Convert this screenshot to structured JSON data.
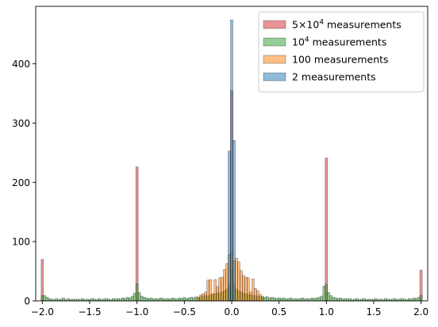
{
  "chart_data": {
    "type": "bar",
    "title": "",
    "xlabel": "",
    "ylabel": "",
    "xlim": [
      -2.07,
      2.07
    ],
    "ylim": [
      0,
      497
    ],
    "bin_width": 0.025,
    "xticks": [
      -2.0,
      -1.5,
      -1.0,
      -0.5,
      0.0,
      0.5,
      1.0,
      1.5,
      2.0
    ],
    "xtick_labels": [
      "−2.0",
      "−1.5",
      "−1.0",
      "−0.5",
      "0.0",
      "0.5",
      "1.0",
      "1.5",
      "2.0"
    ],
    "yticks": [
      0,
      100,
      200,
      300,
      400
    ],
    "ytick_labels": [
      "0",
      "100",
      "200",
      "300",
      "400"
    ],
    "grid": false,
    "legend_position": "top-right",
    "series": [
      {
        "legend_label": "5×10⁴ measurements",
        "legend_base": "5×10",
        "legend_sup": "4",
        "legend_rest": " measurements",
        "color": "#d62728",
        "bars": [
          {
            "x": -2.0,
            "y": 70
          },
          {
            "x": -1.0,
            "y": 226
          },
          {
            "x": 0.0,
            "y": 355
          },
          {
            "x": 1.0,
            "y": 241
          },
          {
            "x": 2.0,
            "y": 52
          }
        ]
      },
      {
        "legend_label": "10⁴ measurements",
        "legend_base": "10",
        "legend_sup": "4",
        "legend_rest": " measurements",
        "color": "#2ca02c",
        "bars": [
          {
            "x": -2.0,
            "y": 9
          },
          {
            "x": -1.975,
            "y": 9
          },
          {
            "x": -1.95,
            "y": 6
          },
          {
            "x": -1.925,
            "y": 4
          },
          {
            "x": -1.9,
            "y": 3
          },
          {
            "x": -1.875,
            "y": 2
          },
          {
            "x": -1.85,
            "y": 4
          },
          {
            "x": -1.825,
            "y": 2
          },
          {
            "x": -1.8,
            "y": 3
          },
          {
            "x": -1.775,
            "y": 5
          },
          {
            "x": -1.75,
            "y": 2
          },
          {
            "x": -1.725,
            "y": 4
          },
          {
            "x": -1.7,
            "y": 2
          },
          {
            "x": -1.675,
            "y": 3
          },
          {
            "x": -1.65,
            "y": 2
          },
          {
            "x": -1.625,
            "y": 3
          },
          {
            "x": -1.6,
            "y": 2
          },
          {
            "x": -1.575,
            "y": 4
          },
          {
            "x": -1.55,
            "y": 2
          },
          {
            "x": -1.525,
            "y": 3
          },
          {
            "x": -1.5,
            "y": 2
          },
          {
            "x": -1.475,
            "y": 4
          },
          {
            "x": -1.45,
            "y": 3
          },
          {
            "x": -1.425,
            "y": 2
          },
          {
            "x": -1.4,
            "y": 4
          },
          {
            "x": -1.375,
            "y": 2
          },
          {
            "x": -1.35,
            "y": 3
          },
          {
            "x": -1.325,
            "y": 4
          },
          {
            "x": -1.3,
            "y": 3
          },
          {
            "x": -1.275,
            "y": 2
          },
          {
            "x": -1.25,
            "y": 4
          },
          {
            "x": -1.225,
            "y": 3
          },
          {
            "x": -1.2,
            "y": 4
          },
          {
            "x": -1.175,
            "y": 3
          },
          {
            "x": -1.15,
            "y": 5
          },
          {
            "x": -1.125,
            "y": 4
          },
          {
            "x": -1.1,
            "y": 6
          },
          {
            "x": -1.075,
            "y": 5
          },
          {
            "x": -1.05,
            "y": 8
          },
          {
            "x": -1.025,
            "y": 13
          },
          {
            "x": -1.0,
            "y": 29
          },
          {
            "x": -0.975,
            "y": 14
          },
          {
            "x": -0.95,
            "y": 8
          },
          {
            "x": -0.925,
            "y": 6
          },
          {
            "x": -0.9,
            "y": 5
          },
          {
            "x": -0.875,
            "y": 4
          },
          {
            "x": -0.85,
            "y": 5
          },
          {
            "x": -0.825,
            "y": 3
          },
          {
            "x": -0.8,
            "y": 4
          },
          {
            "x": -0.775,
            "y": 3
          },
          {
            "x": -0.75,
            "y": 5
          },
          {
            "x": -0.725,
            "y": 4
          },
          {
            "x": -0.7,
            "y": 3
          },
          {
            "x": -0.675,
            "y": 4
          },
          {
            "x": -0.65,
            "y": 3
          },
          {
            "x": -0.625,
            "y": 5
          },
          {
            "x": -0.6,
            "y": 4
          },
          {
            "x": -0.575,
            "y": 3
          },
          {
            "x": -0.55,
            "y": 5
          },
          {
            "x": -0.525,
            "y": 4
          },
          {
            "x": -0.5,
            "y": 6
          },
          {
            "x": -0.475,
            "y": 4
          },
          {
            "x": -0.45,
            "y": 5
          },
          {
            "x": -0.425,
            "y": 6
          },
          {
            "x": -0.4,
            "y": 5
          },
          {
            "x": -0.375,
            "y": 7
          },
          {
            "x": -0.35,
            "y": 6
          },
          {
            "x": -0.325,
            "y": 8
          },
          {
            "x": -0.3,
            "y": 7
          },
          {
            "x": -0.275,
            "y": 9
          },
          {
            "x": -0.25,
            "y": 8
          },
          {
            "x": -0.225,
            "y": 10
          },
          {
            "x": -0.2,
            "y": 11
          },
          {
            "x": -0.175,
            "y": 12
          },
          {
            "x": -0.15,
            "y": 14
          },
          {
            "x": -0.125,
            "y": 13
          },
          {
            "x": -0.1,
            "y": 15
          },
          {
            "x": -0.075,
            "y": 17
          },
          {
            "x": -0.05,
            "y": 20
          },
          {
            "x": -0.025,
            "y": 28
          },
          {
            "x": 0.0,
            "y": 52
          },
          {
            "x": 0.025,
            "y": 28
          },
          {
            "x": 0.05,
            "y": 20
          },
          {
            "x": 0.075,
            "y": 17
          },
          {
            "x": 0.1,
            "y": 15
          },
          {
            "x": 0.125,
            "y": 13
          },
          {
            "x": 0.15,
            "y": 12
          },
          {
            "x": 0.175,
            "y": 11
          },
          {
            "x": 0.2,
            "y": 10
          },
          {
            "x": 0.225,
            "y": 9
          },
          {
            "x": 0.25,
            "y": 9
          },
          {
            "x": 0.275,
            "y": 8
          },
          {
            "x": 0.3,
            "y": 7
          },
          {
            "x": 0.325,
            "y": 8
          },
          {
            "x": 0.35,
            "y": 6
          },
          {
            "x": 0.375,
            "y": 7
          },
          {
            "x": 0.4,
            "y": 5
          },
          {
            "x": 0.425,
            "y": 6
          },
          {
            "x": 0.45,
            "y": 5
          },
          {
            "x": 0.475,
            "y": 4
          },
          {
            "x": 0.5,
            "y": 5
          },
          {
            "x": 0.525,
            "y": 4
          },
          {
            "x": 0.55,
            "y": 5
          },
          {
            "x": 0.575,
            "y": 3
          },
          {
            "x": 0.6,
            "y": 4
          },
          {
            "x": 0.625,
            "y": 5
          },
          {
            "x": 0.65,
            "y": 3
          },
          {
            "x": 0.675,
            "y": 4
          },
          {
            "x": 0.7,
            "y": 3
          },
          {
            "x": 0.725,
            "y": 4
          },
          {
            "x": 0.75,
            "y": 5
          },
          {
            "x": 0.775,
            "y": 3
          },
          {
            "x": 0.8,
            "y": 4
          },
          {
            "x": 0.825,
            "y": 3
          },
          {
            "x": 0.85,
            "y": 5
          },
          {
            "x": 0.875,
            "y": 4
          },
          {
            "x": 0.9,
            "y": 5
          },
          {
            "x": 0.925,
            "y": 6
          },
          {
            "x": 0.95,
            "y": 8
          },
          {
            "x": 0.975,
            "y": 25
          },
          {
            "x": 1.0,
            "y": 28
          },
          {
            "x": 1.025,
            "y": 14
          },
          {
            "x": 1.05,
            "y": 9
          },
          {
            "x": 1.075,
            "y": 6
          },
          {
            "x": 1.1,
            "y": 5
          },
          {
            "x": 1.125,
            "y": 4
          },
          {
            "x": 1.15,
            "y": 5
          },
          {
            "x": 1.175,
            "y": 3
          },
          {
            "x": 1.2,
            "y": 4
          },
          {
            "x": 1.225,
            "y": 3
          },
          {
            "x": 1.25,
            "y": 4
          },
          {
            "x": 1.275,
            "y": 2
          },
          {
            "x": 1.3,
            "y": 3
          },
          {
            "x": 1.325,
            "y": 4
          },
          {
            "x": 1.35,
            "y": 2
          },
          {
            "x": 1.375,
            "y": 3
          },
          {
            "x": 1.4,
            "y": 4
          },
          {
            "x": 1.425,
            "y": 2
          },
          {
            "x": 1.45,
            "y": 3
          },
          {
            "x": 1.475,
            "y": 2
          },
          {
            "x": 1.5,
            "y": 3
          },
          {
            "x": 1.525,
            "y": 4
          },
          {
            "x": 1.55,
            "y": 2
          },
          {
            "x": 1.575,
            "y": 3
          },
          {
            "x": 1.6,
            "y": 2
          },
          {
            "x": 1.625,
            "y": 4
          },
          {
            "x": 1.65,
            "y": 3
          },
          {
            "x": 1.675,
            "y": 2
          },
          {
            "x": 1.7,
            "y": 3
          },
          {
            "x": 1.725,
            "y": 4
          },
          {
            "x": 1.75,
            "y": 2
          },
          {
            "x": 1.775,
            "y": 3
          },
          {
            "x": 1.8,
            "y": 4
          },
          {
            "x": 1.825,
            "y": 3
          },
          {
            "x": 1.85,
            "y": 2
          },
          {
            "x": 1.875,
            "y": 4
          },
          {
            "x": 1.9,
            "y": 3
          },
          {
            "x": 1.925,
            "y": 5
          },
          {
            "x": 1.95,
            "y": 4
          },
          {
            "x": 1.975,
            "y": 6
          },
          {
            "x": 2.0,
            "y": 9
          }
        ]
      },
      {
        "legend_label": "100 measurements",
        "legend_base": "100 measurements",
        "legend_sup": "",
        "legend_rest": "",
        "color": "#ff7f0e",
        "bars": [
          {
            "x": -0.35,
            "y": 5
          },
          {
            "x": -0.325,
            "y": 10
          },
          {
            "x": -0.3,
            "y": 12
          },
          {
            "x": -0.275,
            "y": 15
          },
          {
            "x": -0.25,
            "y": 35
          },
          {
            "x": -0.225,
            "y": 36
          },
          {
            "x": -0.2,
            "y": 12
          },
          {
            "x": -0.175,
            "y": 36
          },
          {
            "x": -0.15,
            "y": 24
          },
          {
            "x": -0.125,
            "y": 39
          },
          {
            "x": -0.1,
            "y": 40
          },
          {
            "x": -0.075,
            "y": 53
          },
          {
            "x": -0.05,
            "y": 63
          },
          {
            "x": -0.025,
            "y": 78
          },
          {
            "x": 0.0,
            "y": 79
          },
          {
            "x": 0.025,
            "y": 68
          },
          {
            "x": 0.05,
            "y": 72
          },
          {
            "x": 0.075,
            "y": 66
          },
          {
            "x": 0.1,
            "y": 51
          },
          {
            "x": 0.125,
            "y": 43
          },
          {
            "x": 0.15,
            "y": 40
          },
          {
            "x": 0.175,
            "y": 39
          },
          {
            "x": 0.2,
            "y": 15
          },
          {
            "x": 0.225,
            "y": 37
          },
          {
            "x": 0.25,
            "y": 21
          },
          {
            "x": 0.275,
            "y": 17
          },
          {
            "x": 0.3,
            "y": 11
          },
          {
            "x": 0.325,
            "y": 5
          }
        ]
      },
      {
        "legend_label": "2 measurements",
        "legend_base": "2 measurements",
        "legend_sup": "",
        "legend_rest": "",
        "color": "#1f77b4",
        "bars": [
          {
            "x": -0.025,
            "y": 253
          },
          {
            "x": 0.0,
            "y": 474
          },
          {
            "x": 0.025,
            "y": 271
          }
        ]
      }
    ]
  }
}
